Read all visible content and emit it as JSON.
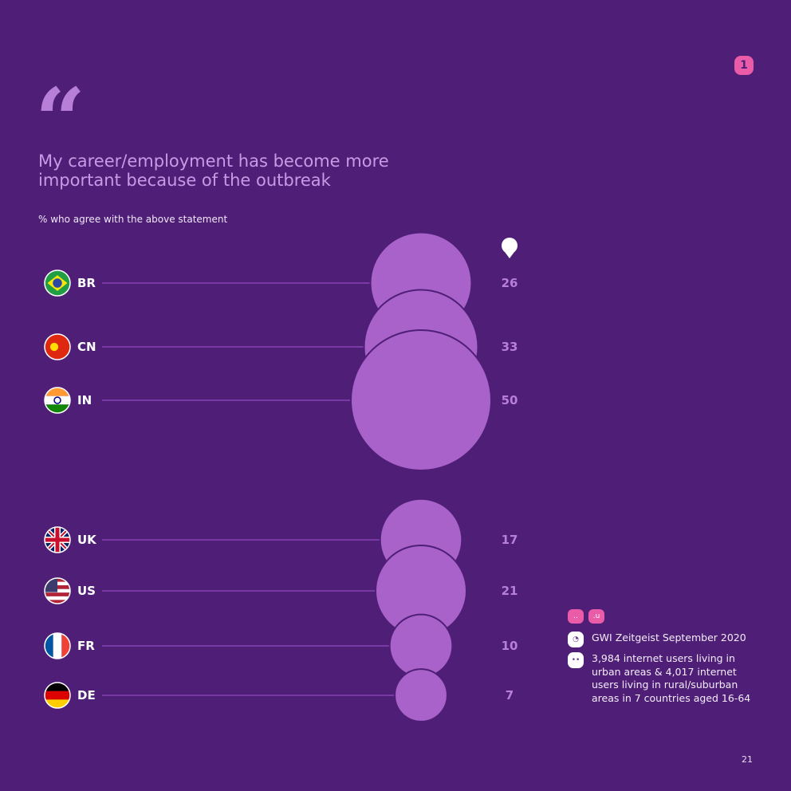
{
  "page_badge": "1",
  "quote_mark": "“",
  "colors": {
    "background": "#4f1f77",
    "bubble": "#a962c9",
    "bubble_outline": "#4f1f77",
    "line": "#7a3aa6",
    "value_text": "#b77fd8",
    "label_text": "#ffffff",
    "accent": "#ea5ba8"
  },
  "legend_icon": "bubble-size-key-icon",
  "sources": {
    "tags": [
      "..",
      ".u"
    ],
    "items": [
      {
        "icon": "source-icon",
        "text": "GWI Zeitgeist September 2020"
      },
      {
        "icon": "sample-icon",
        "text": "3,984 internet users living in urban areas & 4,017 internet users living in rural/suburban areas in 7 countries aged 16-64"
      }
    ]
  },
  "page_number": "21",
  "chart_data": {
    "type": "bubble",
    "title": "My career/employment has become more important because of the outbreak",
    "subtitle": "% who agree with the above statement",
    "groups": [
      {
        "categories": [
          "BR",
          "CN",
          "IN"
        ],
        "values": [
          26,
          33,
          50
        ]
      },
      {
        "categories": [
          "UK",
          "US",
          "FR",
          "DE"
        ],
        "values": [
          17,
          21,
          10,
          7
        ]
      }
    ],
    "flags": {
      "BR": "brazil-flag",
      "CN": "china-flag",
      "IN": "india-flag",
      "UK": "uk-flag",
      "US": "us-flag",
      "FR": "france-flag",
      "DE": "germany-flag"
    }
  }
}
